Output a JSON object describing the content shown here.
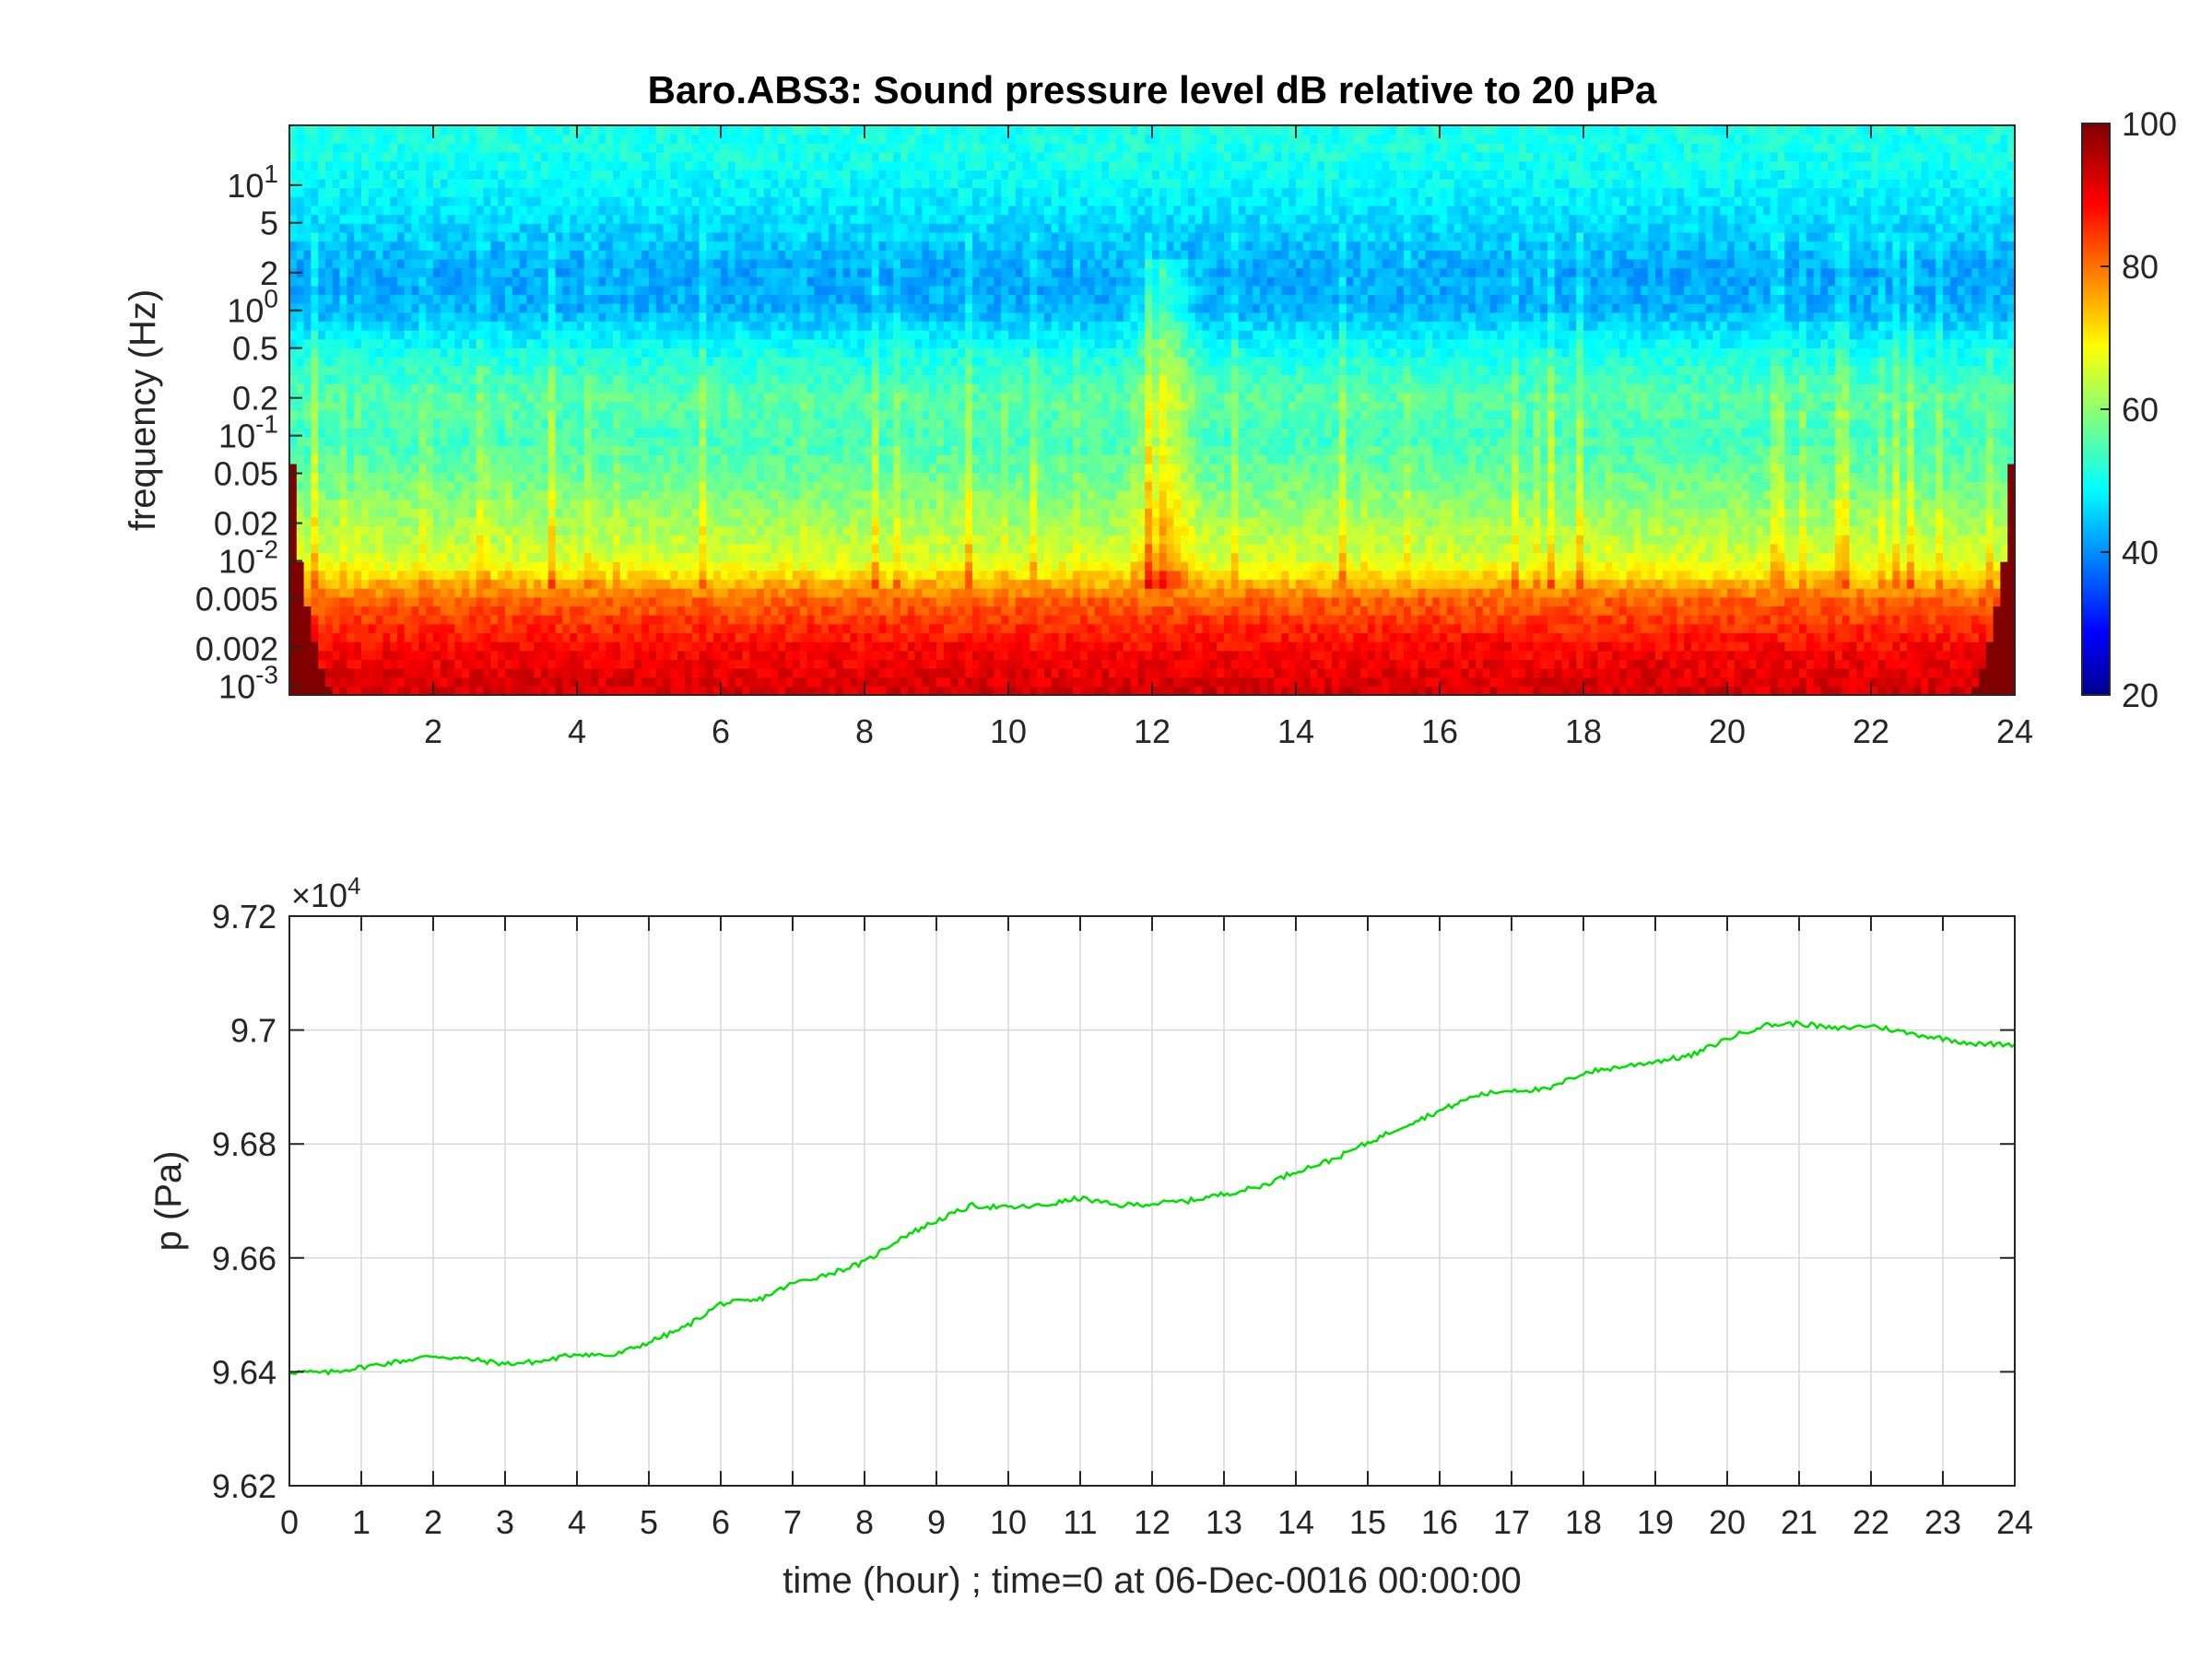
{
  "figure": {
    "title": "Baro.ABS3: Sound pressure level dB relative to 20 μPa"
  },
  "chart_data": [
    {
      "type": "heatmap",
      "title": "Baro.ABS3: Sound pressure level dB relative to 20 μPa",
      "xlabel": "",
      "ylabel": "frequency (Hz)",
      "xlim": [
        0,
        24
      ],
      "ylim": [
        0.00085,
        30
      ],
      "yscale": "log",
      "xticks": [
        2,
        4,
        6,
        8,
        10,
        12,
        14,
        16,
        18,
        20,
        22,
        24
      ],
      "xtick_labels": [
        "2",
        "4",
        "6",
        "8",
        "10",
        "12",
        "14",
        "16",
        "18",
        "20",
        "22",
        "24"
      ],
      "yticks": [
        10,
        5,
        2,
        1,
        0.5,
        0.2,
        0.1,
        0.05,
        0.02,
        0.01,
        0.005,
        0.002,
        0.001
      ],
      "ytick_labels": [
        "10^1",
        "5",
        "2",
        "10^0",
        "0.5",
        "0.2",
        "10^-1",
        "0.05",
        "0.02",
        "10^-2",
        "0.005",
        "0.002",
        "10^-3"
      ],
      "colormap": "jet",
      "clim": [
        20,
        100
      ],
      "colorbar_ticks": [
        20,
        40,
        60,
        80,
        100
      ],
      "colorbar_tick_labels": [
        "20",
        "40",
        "60",
        "80",
        "100"
      ],
      "spectrum_profile_db": [
        {
          "freq_hz": 20,
          "db": 52
        },
        {
          "freq_hz": 10,
          "db": 50
        },
        {
          "freq_hz": 5,
          "db": 47
        },
        {
          "freq_hz": 2,
          "db": 43
        },
        {
          "freq_hz": 1,
          "db": 44
        },
        {
          "freq_hz": 0.5,
          "db": 51
        },
        {
          "freq_hz": 0.2,
          "db": 57
        },
        {
          "freq_hz": 0.1,
          "db": 55
        },
        {
          "freq_hz": 0.05,
          "db": 58
        },
        {
          "freq_hz": 0.02,
          "db": 63
        },
        {
          "freq_hz": 0.01,
          "db": 67
        },
        {
          "freq_hz": 0.005,
          "db": 82
        },
        {
          "freq_hz": 0.002,
          "db": 90
        },
        {
          "freq_hz": 0.001,
          "db": 93
        }
      ],
      "events_hour": [
        12.2
      ]
    },
    {
      "type": "line",
      "title": "",
      "xlabel": "time (hour) ; time=0 at 06-Dec-0016 00:00:00",
      "ylabel": "p (Pa)",
      "y_multiplier": "×10^4",
      "xlim": [
        0,
        24
      ],
      "ylim": [
        9.62,
        9.72
      ],
      "grid": true,
      "xticks": [
        0,
        1,
        2,
        3,
        4,
        5,
        6,
        7,
        8,
        9,
        10,
        11,
        12,
        13,
        14,
        15,
        16,
        17,
        18,
        19,
        20,
        21,
        22,
        23,
        24
      ],
      "xtick_labels": [
        "0",
        "1",
        "2",
        "3",
        "4",
        "5",
        "6",
        "7",
        "8",
        "9",
        "10",
        "11",
        "12",
        "13",
        "14",
        "15",
        "16",
        "17",
        "18",
        "19",
        "20",
        "21",
        "22",
        "23",
        "24"
      ],
      "yticks": [
        9.62,
        9.64,
        9.66,
        9.68,
        9.7,
        9.72
      ],
      "ytick_labels": [
        "9.62",
        "9.64",
        "9.66",
        "9.68",
        "9.7",
        "9.72"
      ],
      "series": [
        {
          "color": "#00e000",
          "x": [
            0,
            0.5,
            1,
            1.5,
            2,
            2.5,
            3,
            3.5,
            4,
            4.5,
            5,
            5.5,
            6,
            6.5,
            7,
            7.5,
            8,
            8.5,
            9,
            9.5,
            10,
            10.5,
            11,
            11.5,
            12,
            12.5,
            13,
            13.5,
            14,
            14.5,
            15,
            15.5,
            16,
            16.5,
            17,
            17.5,
            18,
            18.5,
            19,
            19.5,
            20,
            20.5,
            21,
            21.5,
            22,
            22.5,
            23,
            23.5,
            24
          ],
          "y": [
            9.64,
            9.6398,
            9.6408,
            9.6418,
            9.6428,
            9.6422,
            9.6414,
            9.6418,
            9.6432,
            9.6428,
            9.6452,
            9.6478,
            9.652,
            9.6525,
            9.6555,
            9.6572,
            9.6592,
            9.6635,
            9.6665,
            9.6692,
            9.6688,
            9.6692,
            9.6705,
            9.6692,
            9.6695,
            9.67,
            9.6712,
            9.6725,
            9.6752,
            9.6772,
            9.6802,
            9.6832,
            9.6858,
            9.6885,
            9.6895,
            9.6895,
            9.6925,
            9.6935,
            9.6945,
            9.6955,
            9.6985,
            9.7008,
            9.7012,
            9.7002,
            9.7008,
            9.6995,
            9.6985,
            9.6975,
            9.6975
          ]
        }
      ]
    }
  ]
}
